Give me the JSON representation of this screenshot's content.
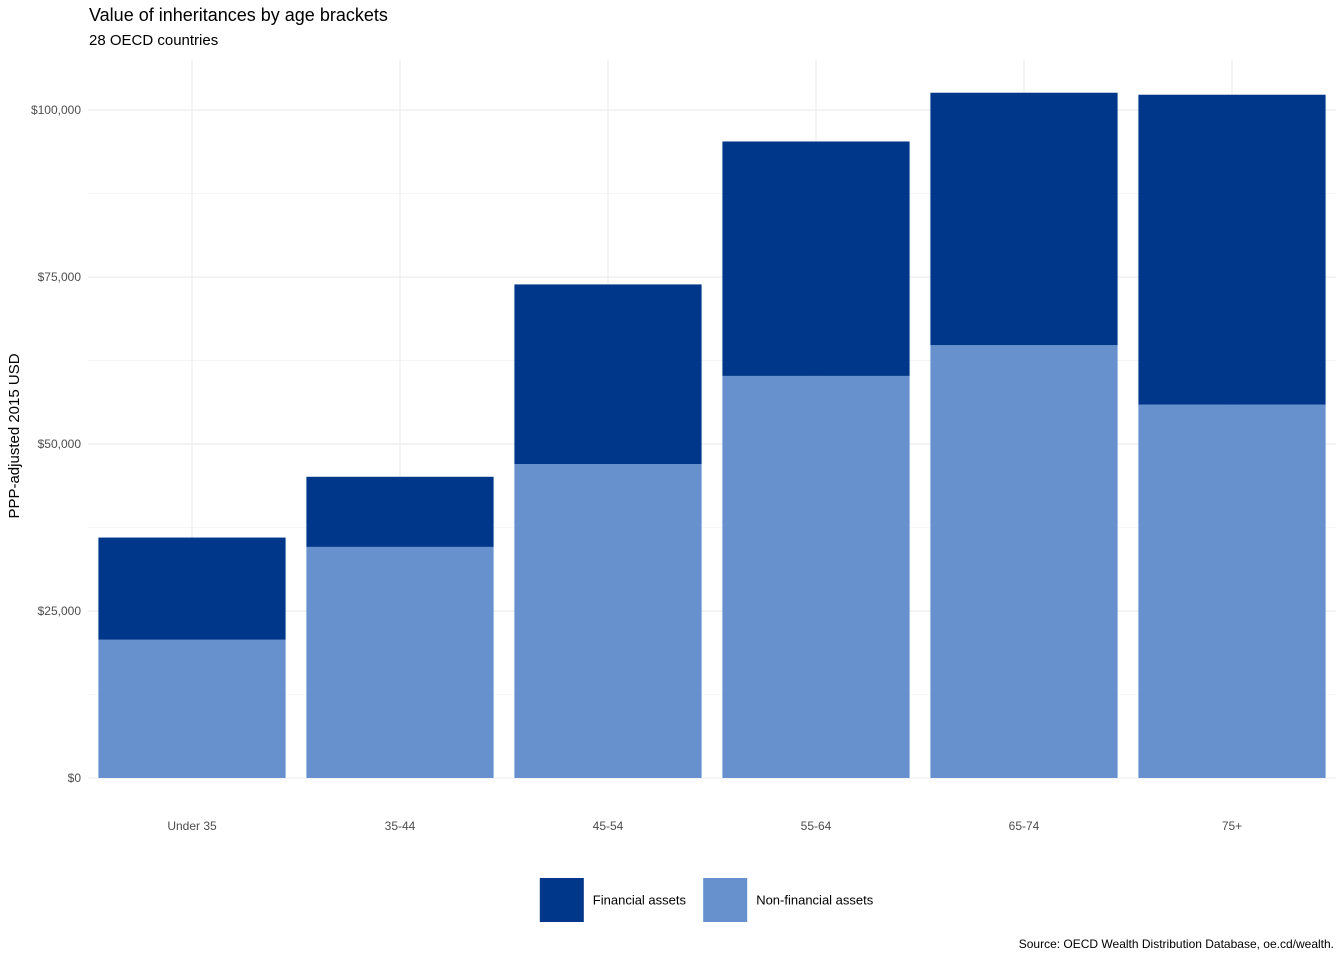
{
  "chart_data": {
    "type": "bar",
    "stacked": true,
    "title": "Value of inheritances by age brackets",
    "subtitle": "28 OECD countries",
    "xlabel": "",
    "ylabel": "PPP-adjusted 2015 USD",
    "categories": [
      "Under 35",
      "35-44",
      "45-54",
      "55-64",
      "65-74",
      "75+"
    ],
    "series": [
      {
        "name": "Non-financial assets",
        "color": "#6691cc",
        "values": [
          20700,
          34600,
          47000,
          60200,
          64800,
          55900
        ]
      },
      {
        "name": "Financial assets",
        "color": "#00378a",
        "values": [
          15300,
          10500,
          26900,
          35100,
          37800,
          46400
        ]
      }
    ],
    "ylim": [
      0,
      107500
    ],
    "yticks": [
      0,
      25000,
      50000,
      75000,
      100000
    ],
    "ytick_labels": [
      "$0",
      "$25,000",
      "$50,000",
      "$75,000",
      "$100,000"
    ],
    "grid": true,
    "legend": {
      "position": "bottom",
      "order": [
        "Financial assets",
        "Non-financial assets"
      ]
    },
    "caption": "Source: OECD Wealth Distribution Database, oe.cd/wealth."
  }
}
